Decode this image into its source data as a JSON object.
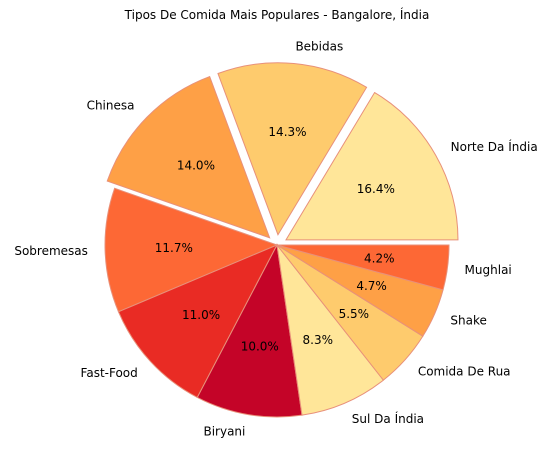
{
  "chart_data": {
    "type": "pie",
    "title": "Tipos De Comida Mais Populares - Bangalore, Índia",
    "slices": [
      {
        "label": "Norte Da Índia",
        "value": 16.4,
        "pct_label": "16.4%",
        "color": "#ffe699",
        "exploded": true
      },
      {
        "label": "Bebidas",
        "value": 14.3,
        "pct_label": "14.3%",
        "color": "#fecb6d",
        "exploded": true
      },
      {
        "label": "Chinesa",
        "value": 14.0,
        "pct_label": "14.0%",
        "color": "#fea046",
        "exploded": true
      },
      {
        "label": "Sobremesas",
        "value": 11.7,
        "pct_label": "11.7%",
        "color": "#fd6835",
        "exploded": false
      },
      {
        "label": "Fast-Food",
        "value": 11.0,
        "pct_label": "11.0%",
        "color": "#e92b24",
        "exploded": false
      },
      {
        "label": "Biryani",
        "value": 10.0,
        "pct_label": "10.0%",
        "color": "#c40428",
        "exploded": false
      },
      {
        "label": "Sul Da Índia",
        "value": 8.3,
        "pct_label": "8.3%",
        "color": "#ffe699",
        "exploded": false
      },
      {
        "label": "Comida De Rua",
        "value": 5.5,
        "pct_label": "5.5%",
        "color": "#fecb6d",
        "exploded": false
      },
      {
        "label": "Shake",
        "value": 4.7,
        "pct_label": "4.7%",
        "color": "#fea046",
        "exploded": false
      },
      {
        "label": "Mughlai",
        "value": 4.2,
        "pct_label": "4.2%",
        "color": "#fd6835",
        "exploded": false
      }
    ],
    "start_angle": 0,
    "direction": "counterclockwise",
    "edge_color": "#e8907a",
    "legend": "none",
    "grid": false
  }
}
